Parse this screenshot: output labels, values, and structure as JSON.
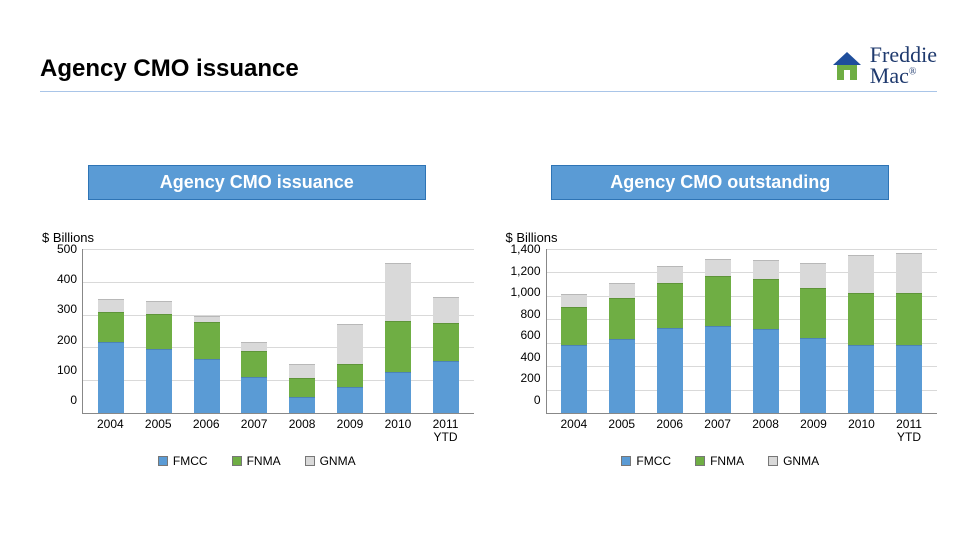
{
  "title": "Agency CMO issuance",
  "logo": {
    "brand_top": "Freddie",
    "brand_bottom": "Mac",
    "roof_color": "#1f4e9c",
    "house_color": "#6fae44"
  },
  "colors": {
    "fmcc": "#5a9bd5",
    "fnma": "#6fae44",
    "gnma": "#d9d9d9",
    "title_bg": "#5a9bd5",
    "title_border": "#2e74b5",
    "grid": "#d9d9d9",
    "axis": "#888888"
  },
  "legend": {
    "items": [
      {
        "key": "fmcc",
        "label": "FMCC"
      },
      {
        "key": "fnma",
        "label": "FNMA"
      },
      {
        "key": "gnma",
        "label": "GNMA"
      }
    ]
  },
  "chart_left": {
    "title": "Agency CMO issuance",
    "y_label": "$ Billions",
    "ymax": 500,
    "ytick_step": 100,
    "yticks": [
      "500",
      "400",
      "300",
      "200",
      "100",
      "0"
    ],
    "categories": [
      "2004",
      "2005",
      "2006",
      "2007",
      "2008",
      "2009",
      "2010",
      "2011\nYTD"
    ],
    "series": [
      {
        "key": "fmcc",
        "values": [
          215,
          195,
          165,
          108,
          50,
          80,
          125,
          158
        ]
      },
      {
        "key": "fnma",
        "values": [
          90,
          105,
          110,
          80,
          55,
          70,
          155,
          115
        ]
      },
      {
        "key": "gnma",
        "values": [
          40,
          40,
          20,
          28,
          45,
          120,
          175,
          80
        ]
      }
    ]
  },
  "chart_right": {
    "title": "Agency CMO outstanding",
    "y_label": "$ Billions",
    "ymax": 1400,
    "ytick_step": 200,
    "yticks": [
      "1,400",
      "1,200",
      "1,000",
      "800",
      "600",
      "400",
      "200",
      "0"
    ],
    "categories": [
      "2004",
      "2005",
      "2006",
      "2007",
      "2008",
      "2009",
      "2010",
      "2011\nYTD"
    ],
    "series": [
      {
        "key": "fmcc",
        "values": [
          580,
          630,
          720,
          740,
          710,
          640,
          580,
          580
        ]
      },
      {
        "key": "fnma",
        "values": [
          320,
          350,
          380,
          420,
          430,
          420,
          440,
          440
        ]
      },
      {
        "key": "gnma",
        "values": [
          110,
          120,
          150,
          150,
          160,
          210,
          320,
          340
        ]
      }
    ]
  }
}
